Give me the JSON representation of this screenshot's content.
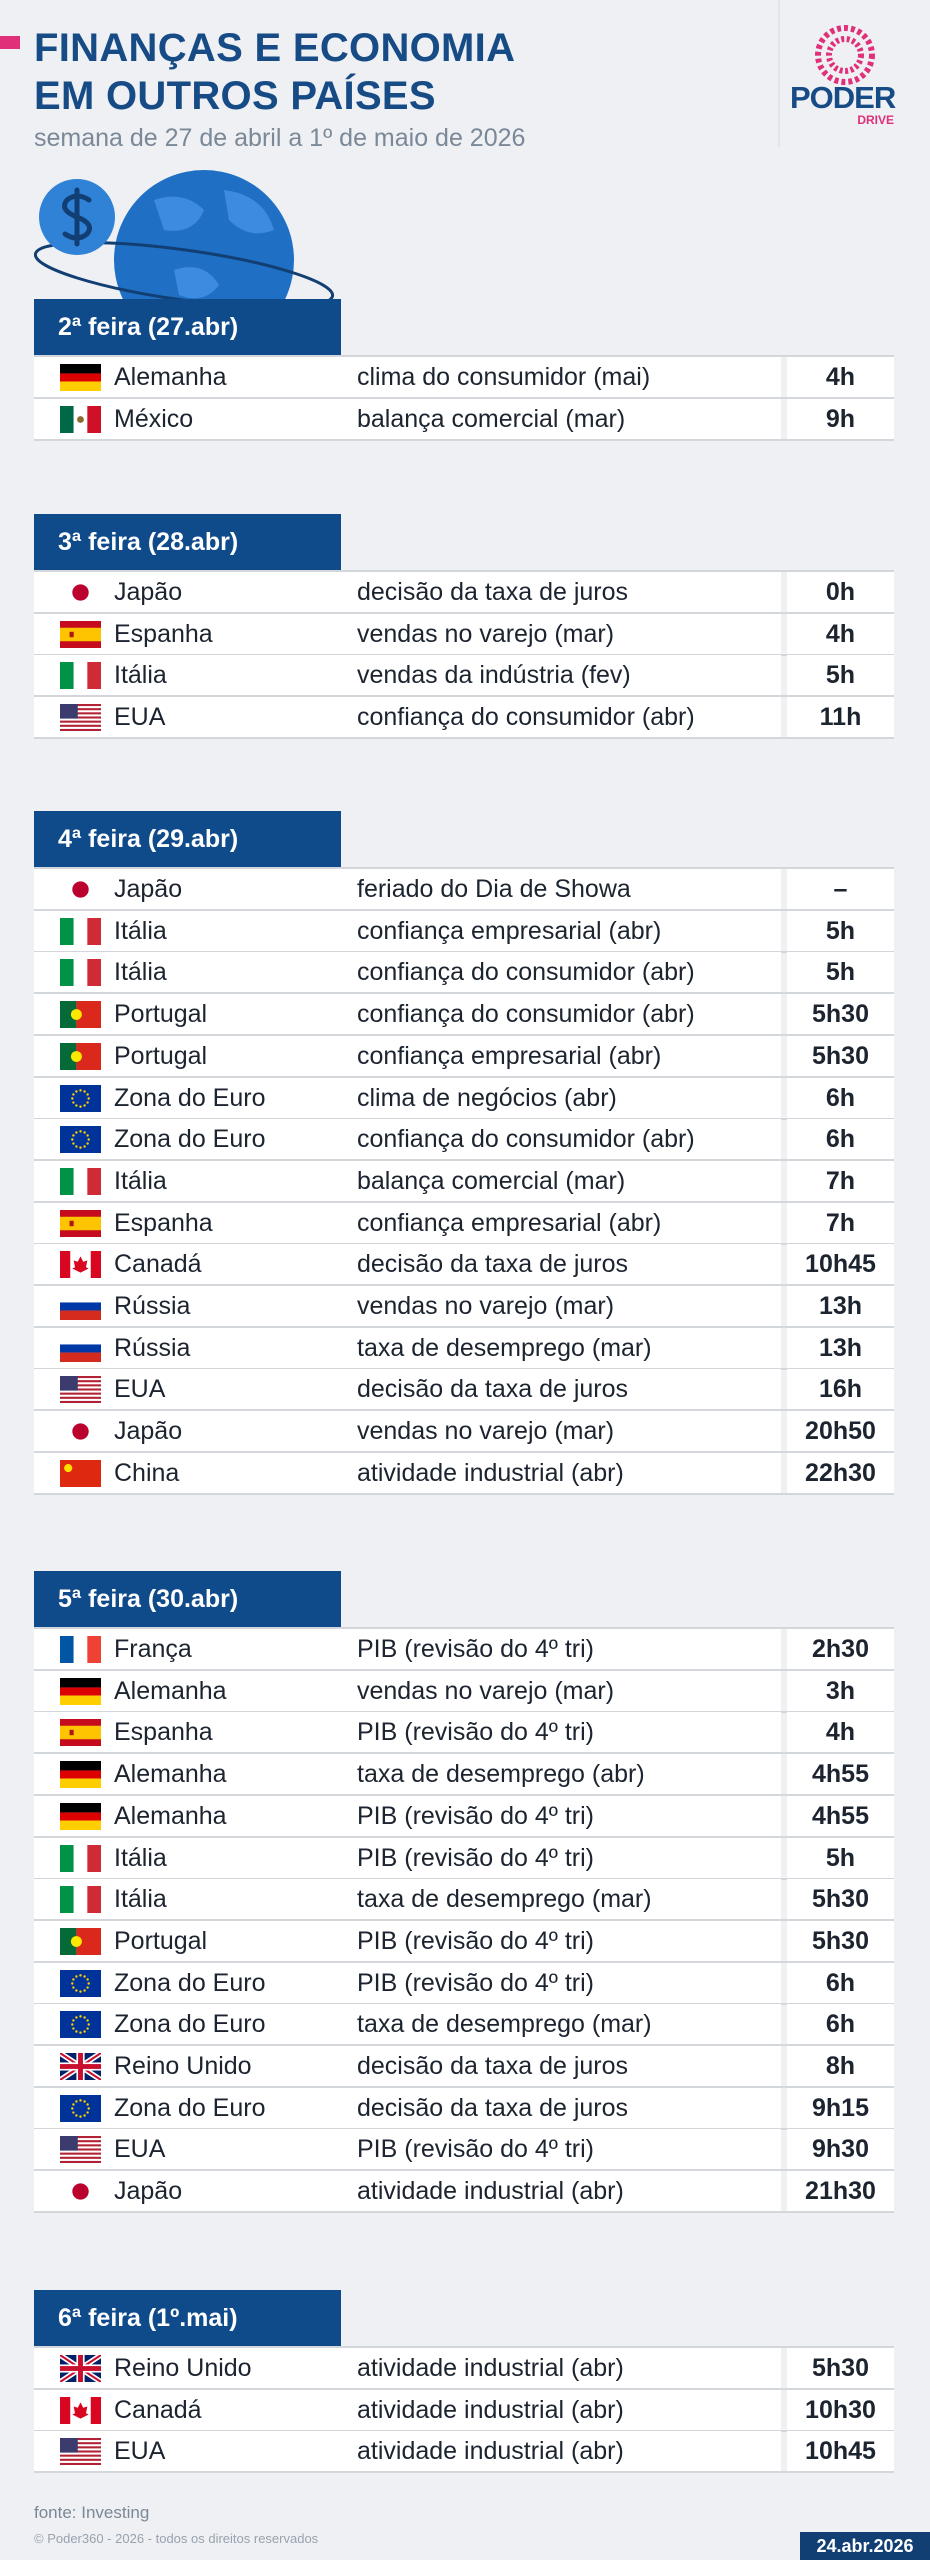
{
  "header": {
    "title_lines": [
      "FINANÇAS E ECONOMIA",
      "EM OUTROS PAÍSES"
    ],
    "subtitle": "semana de 27 de abril a 1º de maio de 2026",
    "logo": {
      "brand": "PODER",
      "sub": "DRIVE"
    }
  },
  "sections": [
    {
      "day": "2ª feira (27.abr)",
      "rows": [
        [
          "Alemanha",
          "clima do consumidor (mai)",
          "4h"
        ],
        [
          "México",
          "balança comercial (mar)",
          "9h"
        ]
      ]
    },
    {
      "day": "3ª feira (28.abr)",
      "rows": [
        [
          "Japão",
          "decisão da taxa de juros",
          "0h"
        ],
        [
          "Espanha",
          "vendas no varejo (mar)",
          "4h"
        ],
        [
          "Itália",
          "vendas da indústria (fev)",
          "5h"
        ],
        [
          "EUA",
          "confiança do consumidor (abr)",
          "11h"
        ]
      ]
    },
    {
      "day": "4ª feira (29.abr)",
      "rows": [
        [
          "Japão",
          "feriado do Dia de Showa",
          "–"
        ],
        [
          "Itália",
          "confiança empresarial (abr)",
          "5h"
        ],
        [
          "Itália",
          "confiança do consumidor (abr)",
          "5h"
        ],
        [
          "Portugal",
          "confiança do consumidor (abr)",
          "5h30"
        ],
        [
          "Portugal",
          "confiança empresarial (abr)",
          "5h30"
        ],
        [
          "Zona do Euro",
          "clima de negócios (abr)",
          "6h"
        ],
        [
          "Zona do Euro",
          "confiança do consumidor (abr)",
          "6h"
        ],
        [
          "Itália",
          "balança comercial (mar)",
          "7h"
        ],
        [
          "Espanha",
          "confiança empresarial (abr)",
          "7h"
        ],
        [
          "Canadá",
          "decisão da taxa de juros",
          "10h45"
        ],
        [
          "Rússia",
          "vendas no varejo (mar)",
          "13h"
        ],
        [
          "Rússia",
          "taxa de desemprego (mar)",
          "13h"
        ],
        [
          "EUA",
          "decisão da taxa de juros",
          "16h"
        ],
        [
          "Japão",
          "vendas no varejo (mar)",
          "20h50"
        ],
        [
          "China",
          "atividade industrial (abr)",
          "22h30"
        ]
      ]
    },
    {
      "day": "5ª feira (30.abr)",
      "rows": [
        [
          "França",
          "PIB (revisão do 4º tri)",
          "2h30"
        ],
        [
          "Alemanha",
          "vendas no varejo (mar)",
          "3h"
        ],
        [
          "Espanha",
          "PIB (revisão do 4º tri)",
          "4h"
        ],
        [
          "Alemanha",
          "taxa de desemprego (abr)",
          "4h55"
        ],
        [
          "Alemanha",
          "PIB (revisão do 4º tri)",
          "4h55"
        ],
        [
          "Itália",
          "PIB (revisão do 4º tri)",
          "5h"
        ],
        [
          "Itália",
          "taxa de desemprego (mar)",
          "5h30"
        ],
        [
          "Portugal",
          "PIB (revisão do 4º tri)",
          "5h30"
        ],
        [
          "Zona do Euro",
          "PIB (revisão do 4º tri)",
          "6h"
        ],
        [
          "Zona do Euro",
          "taxa de desemprego (mar)",
          "6h"
        ],
        [
          "Reino Unido",
          "decisão da taxa de juros",
          "8h"
        ],
        [
          "Zona do Euro",
          "decisão da taxa de juros",
          "9h15"
        ],
        [
          "EUA",
          "PIB (revisão do 4º tri)",
          "9h30"
        ],
        [
          "Japão",
          "atividade industrial (abr)",
          "21h30"
        ]
      ]
    },
    {
      "day": "6ª feira (1º.mai)",
      "rows": [
        [
          "Reino Unido",
          "atividade industrial (abr)",
          "5h30"
        ],
        [
          "Canadá",
          "atividade industrial (abr)",
          "10h30"
        ],
        [
          "EUA",
          "atividade industrial (abr)",
          "10h45"
        ]
      ]
    }
  ],
  "footer": {
    "source": "fonte: Investing",
    "copyright": "© Poder360 - 2026 - todos os direitos reservados",
    "date": "24.abr.2026"
  }
}
